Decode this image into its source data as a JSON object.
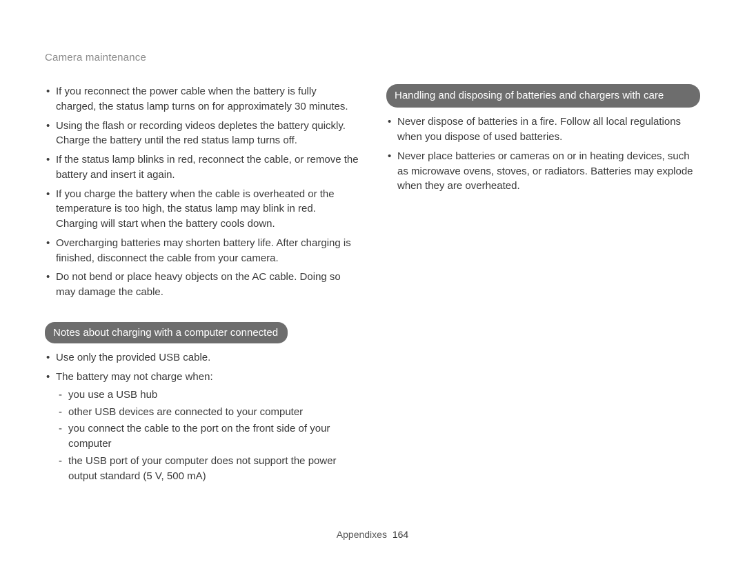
{
  "header": {
    "title": "Camera maintenance"
  },
  "left": {
    "bullets": [
      "If you reconnect the power cable when the battery is fully charged, the status lamp turns on for approximately 30 minutes.",
      "Using the flash or recording videos depletes the battery quickly. Charge the battery until the red status lamp turns off.",
      "If the status lamp blinks in red, reconnect the cable, or remove the battery and insert it again.",
      "If you charge the battery when the cable is overheated or the temperature is too high, the status lamp may blink in red. Charging will start when the battery cools down.",
      "Overcharging batteries may shorten battery life. After charging is finished, disconnect the cable from your camera.",
      "Do not bend or place heavy objects on the AC cable. Doing so may damage the cable."
    ],
    "notes_heading": "Notes about charging with a computer connected",
    "notes_bullets": [
      "Use only the provided USB cable.",
      "The battery may not charge when:"
    ],
    "notes_dashes": [
      "you use a USB hub",
      "other USB devices are connected to your computer",
      "you connect the cable to the port on the front side of your computer",
      "the USB port of your computer does not support the power output standard (5 V, 500 mA)"
    ]
  },
  "right": {
    "heading": "Handling and disposing of batteries and chargers with care",
    "bullets": [
      "Never dispose of batteries in a fire. Follow all local regulations when you dispose of used batteries.",
      "Never place batteries or cameras on or in heating devices, such as microwave ovens, stoves, or radiators. Batteries may explode when they are overheated."
    ]
  },
  "footer": {
    "label": "Appendixes",
    "page": "164"
  }
}
